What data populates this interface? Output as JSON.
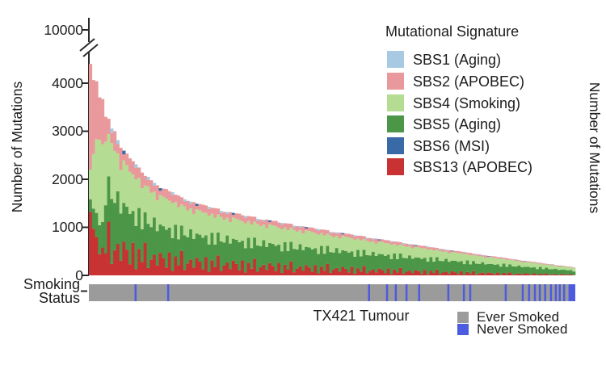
{
  "figure": {
    "background": "#ffffff"
  },
  "chart_data": {
    "type": "bar",
    "stacked": true,
    "title": "",
    "xlabel": "TX421 Tumour",
    "ylabel_left": "Number of Mutations",
    "ylabel_right": "Number of Mutations",
    "legend_title": "Mutational Signature",
    "y_tick_labels": [
      "0",
      "1000",
      "2000",
      "3000",
      "4000",
      "10000"
    ],
    "y_tick_values": [
      0,
      1000,
      2000,
      3000,
      4000
    ],
    "axis_break": {
      "tick_label": "10000",
      "note": "y-axis broken above 4600; top tick reads 10000"
    },
    "ylim_linear": [
      0,
      4600
    ],
    "n_samples": 160,
    "x_axis_note": "one stacked bar per tumour, sorted by total mutations descending",
    "signatures": [
      {
        "id": "SBS1",
        "label": "SBS1 (Aging)",
        "color": "#a7c9e2"
      },
      {
        "id": "SBS2",
        "label": "SBS2 (APOBEC)",
        "color": "#e9999b"
      },
      {
        "id": "SBS4",
        "label": "SBS4 (Smoking)",
        "color": "#b5dc93"
      },
      {
        "id": "SBS5",
        "label": "SBS5 (Aging)",
        "color": "#4b9647"
      },
      {
        "id": "SBS6",
        "label": "SBS6 (MSI)",
        "color": "#3a69a8"
      },
      {
        "id": "SBS13",
        "label": "SBS13 (APOBEC)",
        "color": "#c83232"
      }
    ],
    "stack_order_bottom_to_top": [
      "SBS13",
      "SBS5",
      "SBS4",
      "SBS2",
      "SBS1",
      "SBS6"
    ],
    "totals": [
      4400,
      4040,
      4065,
      3670,
      3705,
      3260,
      3300,
      3000,
      3055,
      2815,
      2595,
      2655,
      2535,
      2375,
      2435,
      2245,
      2310,
      2070,
      2140,
      1980,
      2050,
      1925,
      1805,
      1875,
      1815,
      1730,
      1795,
      1680,
      1750,
      1585,
      1660,
      1550,
      1625,
      1535,
      1455,
      1525,
      1485,
      1425,
      1490,
      1400,
      1470,
      1340,
      1405,
      1320,
      1390,
      1320,
      1250,
      1315,
      1290,
      1235,
      1300,
      1225,
      1285,
      1175,
      1235,
      1160,
      1220,
      1160,
      1100,
      1160,
      1135,
      1090,
      1145,
      1080,
      1135,
      1035,
      1085,
      1025,
      1075,
      1025,
      970,
      1020,
      1000,
      960,
      1005,
      950,
      995,
      905,
      955,
      895,
      940,
      895,
      850,
      890,
      870,
      835,
      880,
      825,
      865,
      785,
      825,
      775,
      815,
      770,
      730,
      765,
      750,
      715,
      750,
      705,
      735,
      670,
      700,
      660,
      690,
      650,
      615,
      645,
      630,
      600,
      625,
      585,
      615,
      555,
      580,
      545,
      570,
      535,
      505,
      525,
      515,
      490,
      510,
      475,
      495,
      445,
      465,
      435,
      450,
      425,
      400,
      415,
      400,
      380,
      395,
      370,
      380,
      345,
      355,
      330,
      340,
      320,
      295,
      305,
      295,
      280,
      285,
      265,
      270,
      240,
      250,
      230,
      235,
      215,
      200,
      205,
      195,
      180,
      185,
      165
    ],
    "composition_patterns": [
      [
        0.22,
        0.34,
        0.34,
        0.1,
        0.0,
        0.0
      ],
      [
        0.1,
        0.42,
        0.36,
        0.12,
        0.0,
        0.0
      ],
      [
        0.3,
        0.26,
        0.32,
        0.12,
        0.0,
        0.0
      ],
      [
        0.06,
        0.38,
        0.42,
        0.11,
        0.03,
        0.0
      ],
      [
        0.26,
        0.36,
        0.28,
        0.1,
        0.0,
        0.0
      ],
      [
        0.14,
        0.3,
        0.4,
        0.16,
        0.0,
        0.0
      ],
      [
        0.35,
        0.28,
        0.27,
        0.1,
        0.0,
        0.0
      ],
      [
        0.08,
        0.44,
        0.38,
        0.07,
        0.03,
        0.0
      ],
      [
        0.18,
        0.32,
        0.36,
        0.14,
        0.0,
        0.0
      ],
      [
        0.24,
        0.38,
        0.28,
        0.07,
        0.03,
        0.0
      ],
      [
        0.12,
        0.36,
        0.34,
        0.18,
        0.0,
        0.0
      ],
      [
        0.28,
        0.3,
        0.34,
        0.05,
        0.0,
        0.03
      ]
    ],
    "composition_overrides": {
      "0": [
        0.3,
        0.06,
        0.14,
        0.5,
        0.0,
        0.0
      ],
      "1": [
        0.24,
        0.1,
        0.28,
        0.38,
        0.0,
        0.0
      ],
      "2": [
        0.2,
        0.12,
        0.38,
        0.3,
        0.0,
        0.0
      ],
      "3": [
        0.12,
        0.16,
        0.48,
        0.24,
        0.0,
        0.0
      ],
      "4": [
        0.16,
        0.14,
        0.44,
        0.26,
        0.0,
        0.0
      ]
    },
    "composition_drift": {
      "sbs13_end_scale": 0.45,
      "sbs2_end_scale": 0.55
    },
    "smoking_track": {
      "label_line1": "Smoking",
      "label_line2": "Status",
      "legend": [
        {
          "label": "Ever Smoked",
          "color": "#9b9b9b"
        },
        {
          "label": "Never Smoked",
          "color": "#4c5be0"
        }
      ],
      "never_smoked_positions": [
        0.096,
        0.163,
        0.576,
        0.613,
        0.631,
        0.653,
        0.679,
        0.739,
        0.771,
        0.784,
        0.857,
        0.892,
        0.905,
        0.917,
        0.927,
        0.938,
        0.95,
        0.96,
        0.968,
        0.977
      ],
      "never_smoked_end_block": [
        0.986,
        1.0
      ]
    }
  }
}
